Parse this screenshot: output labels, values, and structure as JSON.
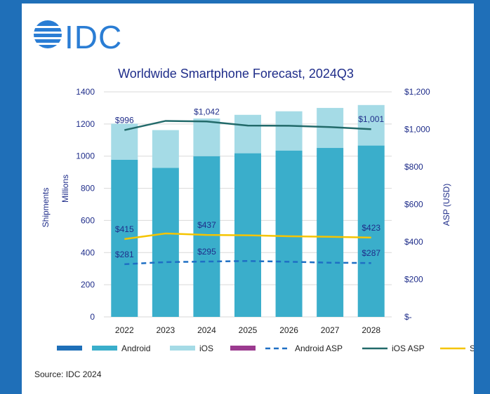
{
  "logo": {
    "text": "IDC",
    "color": "#2a7dd4"
  },
  "source": "Source: IDC 2024",
  "colors": {
    "android": "#3aaecb",
    "ios": "#a5dbe6",
    "android_asp": "#1e6fc4",
    "ios_asp": "#226a6a",
    "sp_asp": "#f5c400",
    "grid": "#d9d9d9",
    "legend_blank1": "#1e6fb8",
    "legend_blank2": "#9b3a8f"
  },
  "chart_data": {
    "type": "bar",
    "title": "Worldwide Smartphone Forecast, 2024Q3",
    "categories": [
      "2022",
      "2023",
      "2024",
      "2025",
      "2026",
      "2027",
      "2028"
    ],
    "ylabel": "Shipments",
    "ylabel2": "Millions",
    "y2label": "ASP (USD)",
    "ylim": [
      0,
      1400
    ],
    "y2lim": [
      0,
      1200
    ],
    "y_ticks": [
      "0",
      "200",
      "400",
      "600",
      "800",
      "1000",
      "1200",
      "1400"
    ],
    "y2_ticks": [
      "$-",
      "$200",
      "$400",
      "$600",
      "$800",
      "$1,000",
      "$1,200"
    ],
    "series": [
      {
        "name": "Android",
        "kind": "bar",
        "values": [
          978,
          927,
          1000,
          1018,
          1035,
          1051,
          1066
        ]
      },
      {
        "name": "iOS",
        "kind": "bar",
        "values": [
          224,
          235,
          234,
          239,
          244,
          249,
          252
        ]
      },
      {
        "name": "Android ASP",
        "kind": "line",
        "axis": "y2",
        "values": [
          281,
          292,
          295,
          298,
          294,
          289,
          287
        ]
      },
      {
        "name": "iOS ASP",
        "kind": "line",
        "axis": "y2",
        "values": [
          996,
          1045,
          1042,
          1020,
          1019,
          1012,
          1001
        ]
      },
      {
        "name": "SP ASP",
        "kind": "line",
        "axis": "y2",
        "values": [
          415,
          445,
          437,
          435,
          430,
          427,
          423
        ]
      }
    ],
    "data_labels": {
      "ios_asp": [
        {
          "index": 0,
          "text": "$996"
        },
        {
          "index": 2,
          "text": "$1,042"
        },
        {
          "index": 6,
          "text": "$1,001"
        }
      ],
      "sp_asp": [
        {
          "index": 0,
          "text": "$415"
        },
        {
          "index": 2,
          "text": "$437"
        },
        {
          "index": 6,
          "text": "$423"
        }
      ],
      "android_asp": [
        {
          "index": 0,
          "text": "$281"
        },
        {
          "index": 2,
          "text": "$295"
        },
        {
          "index": 6,
          "text": "$287"
        }
      ]
    },
    "legend": {
      "placement": "bottom",
      "items": [
        {
          "label": "",
          "kind": "bar",
          "color_key": "legend_blank1"
        },
        {
          "label": "Android",
          "kind": "bar",
          "color_key": "android"
        },
        {
          "label": "iOS",
          "kind": "bar",
          "color_key": "ios"
        },
        {
          "label": "",
          "kind": "bar",
          "color_key": "legend_blank2"
        },
        {
          "label": "Android ASP",
          "kind": "dash",
          "color_key": "android_asp"
        },
        {
          "label": "iOS ASP",
          "kind": "line",
          "color_key": "ios_asp"
        },
        {
          "label": "SP ASP",
          "kind": "line",
          "color_key": "sp_asp"
        }
      ]
    },
    "grid": true
  }
}
